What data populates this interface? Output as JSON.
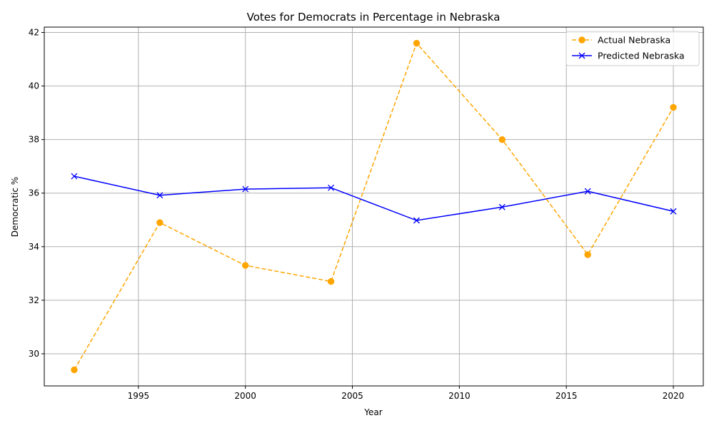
{
  "chart_data": {
    "type": "line",
    "title": "Votes for Democrats in Percentage in Nebraska",
    "xlabel": "Year",
    "ylabel": "Democratic %",
    "xlim": [
      1990.6,
      2021.4
    ],
    "ylim": [
      28.8,
      42.2
    ],
    "xticks": [
      1995,
      2000,
      2005,
      2010,
      2015,
      2020
    ],
    "yticks": [
      30,
      32,
      34,
      36,
      38,
      40,
      42
    ],
    "grid": true,
    "legend_position": "upper right",
    "x": [
      1992,
      1996,
      2000,
      2004,
      2008,
      2012,
      2016,
      2020
    ],
    "series": [
      {
        "name": "Actual Nebraska",
        "color": "#FFA500",
        "line_style": "dashed",
        "marker": "circle",
        "values": [
          29.4,
          34.9,
          33.3,
          32.7,
          41.6,
          38.0,
          33.7,
          39.2
        ]
      },
      {
        "name": "Predicted Nebraska",
        "color": "#0000FF",
        "line_style": "solid",
        "marker": "x",
        "values": [
          36.63,
          35.92,
          36.15,
          36.2,
          34.98,
          35.48,
          36.07,
          35.32
        ]
      }
    ]
  }
}
